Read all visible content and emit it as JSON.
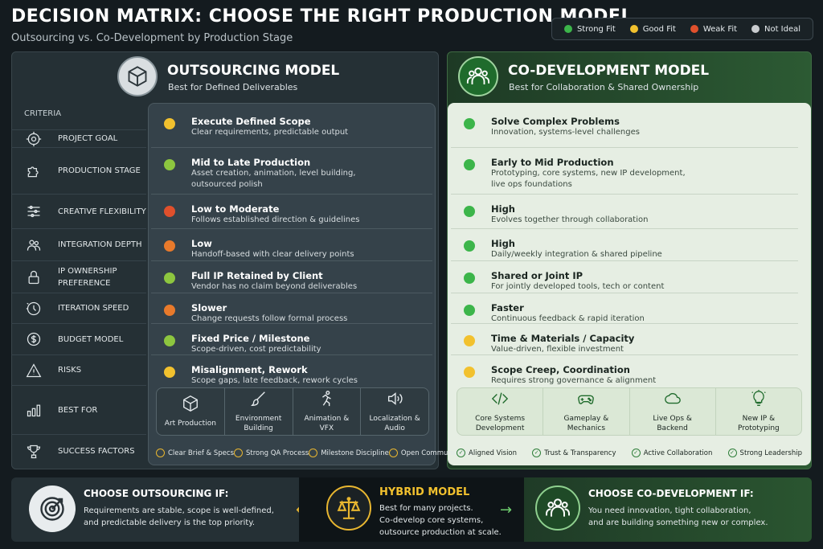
{
  "header": {
    "title": "DECISION MATRIX: CHOOSE THE RIGHT PRODUCTION MODEL",
    "subtitle": "Outsourcing vs. Co-Development by Production Stage"
  },
  "legend": [
    {
      "label": "Strong Fit",
      "color": "#3cb54a"
    },
    {
      "label": "Good Fit",
      "color": "#f2c12e"
    },
    {
      "label": "Weak Fit",
      "color": "#e0502c"
    },
    {
      "label": "Not Ideal",
      "color": "#c9cccf"
    }
  ],
  "colors": {
    "strong": "#3cb54a",
    "good": "#f2c12e",
    "weak": "#e0502c",
    "moderate": "#e97a2b",
    "lime": "#8dc63f"
  },
  "outsourcing": {
    "title": "OUTSOURCING MODEL",
    "subtitle": "Best for Defined Deliverables",
    "icon": "box-icon"
  },
  "codev": {
    "title": "CO-DEVELOPMENT MODEL",
    "subtitle": "Best for Collaboration & Shared Ownership",
    "icon": "team-icon"
  },
  "criteria_header": "CRITERIA",
  "criteria": [
    {
      "label": "PROJECT GOAL",
      "icon": "target-icon"
    },
    {
      "label": "PRODUCTION STAGE",
      "icon": "puzzle-icon"
    },
    {
      "label": "CREATIVE FLEXIBILITY",
      "icon": "sliders-icon"
    },
    {
      "label": "INTEGRATION DEPTH",
      "icon": "people-icon"
    },
    {
      "label": "IP OWNERSHIP PREFERENCE",
      "icon": "lock-icon"
    },
    {
      "label": "ITERATION SPEED",
      "icon": "clock-icon"
    },
    {
      "label": "BUDGET MODEL",
      "icon": "dollar-icon"
    },
    {
      "label": "RISKS",
      "icon": "warning-icon"
    },
    {
      "label": "BEST FOR",
      "icon": "bars-icon"
    },
    {
      "label": "SUCCESS FACTORS",
      "icon": "trophy-icon"
    }
  ],
  "out_rows": [
    {
      "title": "Execute Defined Scope",
      "desc": [
        "Clear requirements, predictable output"
      ],
      "rating": "good"
    },
    {
      "title": "Mid to Late Production",
      "desc": [
        "Asset creation, animation, level building,",
        "outsourced polish"
      ],
      "rating": "lime"
    },
    {
      "title": "Low to Moderate",
      "desc": [
        "Follows established direction & guidelines"
      ],
      "rating": "weak"
    },
    {
      "title": "Low",
      "desc": [
        "Handoff-based with clear delivery points"
      ],
      "rating": "moderate"
    },
    {
      "title": "Full IP Retained by Client",
      "desc": [
        "Vendor has no claim beyond deliverables"
      ],
      "rating": "lime"
    },
    {
      "title": "Slower",
      "desc": [
        "Change requests follow formal process"
      ],
      "rating": "moderate"
    },
    {
      "title": "Fixed Price / Milestone",
      "desc": [
        "Scope-driven, cost predictability"
      ],
      "rating": "lime"
    },
    {
      "title": "Misalignment, Rework",
      "desc": [
        "Scope gaps, late feedback, rework cycles"
      ],
      "rating": "good"
    }
  ],
  "co_rows": [
    {
      "title": "Solve Complex Problems",
      "desc": [
        "Innovation, systems-level challenges"
      ],
      "rating": "strong"
    },
    {
      "title": "Early to Mid Production",
      "desc": [
        "Prototyping, core systems, new IP development,",
        "live ops foundations"
      ],
      "rating": "strong"
    },
    {
      "title": "High",
      "desc": [
        "Evolves together through collaboration"
      ],
      "rating": "strong"
    },
    {
      "title": "High",
      "desc": [
        "Daily/weekly integration & shared pipeline"
      ],
      "rating": "strong"
    },
    {
      "title": "Shared or Joint IP",
      "desc": [
        "For jointly developed tools, tech or content"
      ],
      "rating": "strong"
    },
    {
      "title": "Faster",
      "desc": [
        "Continuous feedback & rapid iteration"
      ],
      "rating": "strong"
    },
    {
      "title": "Time & Materials / Capacity",
      "desc": [
        "Value-driven, flexible investment"
      ],
      "rating": "good"
    },
    {
      "title": "Scope Creep, Coordination",
      "desc": [
        "Requires strong governance & alignment"
      ],
      "rating": "good"
    }
  ],
  "out_best_for": [
    {
      "label": [
        "Art Production"
      ],
      "icon": "cube-icon"
    },
    {
      "label": [
        "Environment",
        "Building"
      ],
      "icon": "brush-icon"
    },
    {
      "label": [
        "Animation &",
        "VFX"
      ],
      "icon": "runner-icon"
    },
    {
      "label": [
        "Localization &",
        "Audio"
      ],
      "icon": "speaker-icon"
    }
  ],
  "co_best_for": [
    {
      "label": [
        "Core Systems",
        "Development"
      ],
      "icon": "code-icon"
    },
    {
      "label": [
        "Gameplay &",
        "Mechanics"
      ],
      "icon": "gamepad-icon"
    },
    {
      "label": [
        "Live Ops &",
        "Backend"
      ],
      "icon": "cloud-icon"
    },
    {
      "label": [
        "New IP &",
        "Prototyping"
      ],
      "icon": "lightbulb-icon"
    }
  ],
  "out_success": [
    "Clear Brief & Specs",
    "Strong QA Process",
    "Milestone Discipline",
    "Open Communication"
  ],
  "co_success": [
    "Aligned Vision",
    "Trust & Transparency",
    "Active Collaboration",
    "Strong Leadership"
  ],
  "bottom": {
    "left": {
      "title": "CHOOSE OUTSOURCING IF:",
      "lines": [
        "Requirements are stable, scope is well-defined,",
        "and predictable delivery is the top priority."
      ]
    },
    "mid": {
      "title": "HYBRID MODEL",
      "lines": [
        "Best for many projects.",
        "Co-develop core systems,",
        "outsource production at scale."
      ]
    },
    "right": {
      "title": "CHOOSE CO-DEVELOPMENT IF:",
      "lines": [
        "You need innovation, tight collaboration,",
        "and are building something new or complex."
      ]
    }
  }
}
